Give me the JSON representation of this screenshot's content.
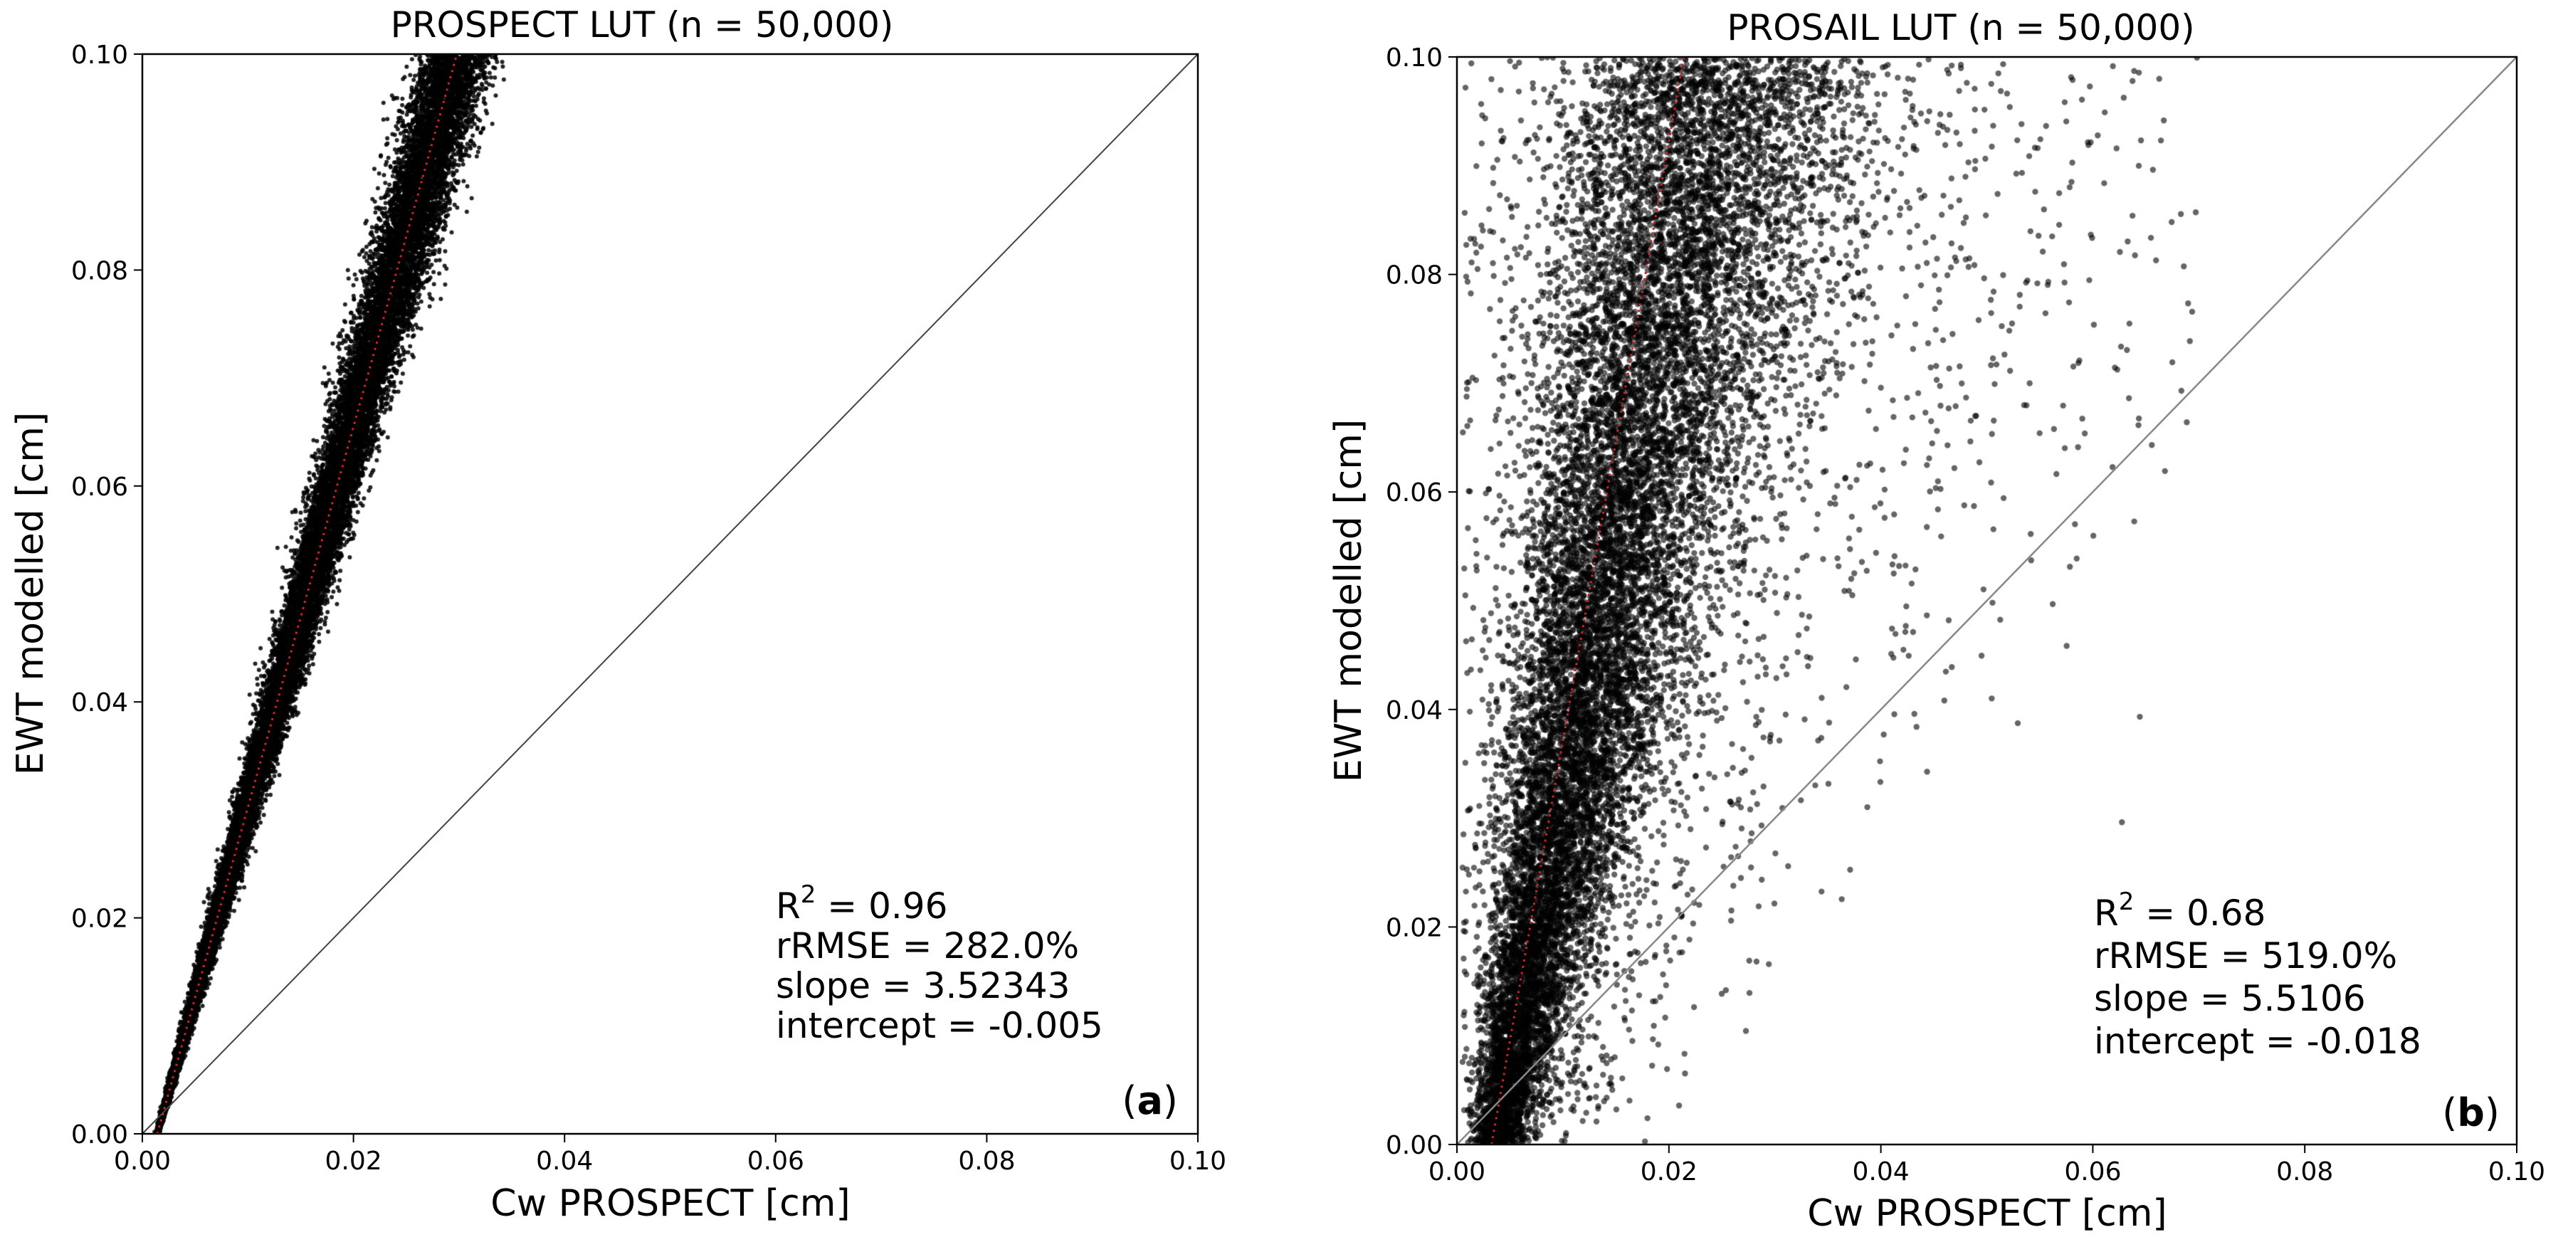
{
  "figure": {
    "description_free": true
  },
  "chart_data": [
    {
      "type": "scatter",
      "panel_label": "a",
      "title": "PROSPECT LUT (n = 50,000)",
      "xlabel": "Cw PROSPECT [cm]",
      "ylabel": "EWT modelled [cm]",
      "xlim": [
        0,
        0.1
      ],
      "ylim": [
        0,
        0.1
      ],
      "xticks": [
        "0.00",
        "0.02",
        "0.04",
        "0.06",
        "0.08",
        "0.10"
      ],
      "yticks": [
        "0.00",
        "0.02",
        "0.04",
        "0.06",
        "0.08",
        "0.10"
      ],
      "n_points": 50000,
      "point_color": "#000000",
      "fit_line": {
        "slope": 3.52343,
        "intercept": -0.005,
        "color": "#cc2222",
        "style": "dotted"
      },
      "one_to_one_line": {
        "color": "#444444"
      },
      "spread": {
        "relative_sd": 0.06,
        "cw_max": 0.036
      },
      "stats": {
        "r2_prefix": "R",
        "r2_sup": "2",
        "r2_value": " = 0.96",
        "rrmse": "rRMSE = 282.0%",
        "slope": "slope = 3.52343",
        "intercept": "intercept = -0.005"
      },
      "panel_tag": {
        "open": "(",
        "letter": "a",
        "close": ")"
      }
    },
    {
      "type": "scatter",
      "panel_label": "b",
      "title": "PROSAIL LUT (n = 50,000)",
      "xlabel": "Cw PROSPECT [cm]",
      "ylabel": "EWT modelled [cm]",
      "xlim": [
        0,
        0.1
      ],
      "ylim": [
        0,
        0.1
      ],
      "xticks": [
        "0.00",
        "0.02",
        "0.04",
        "0.06",
        "0.08",
        "0.10"
      ],
      "yticks": [
        "0.00",
        "0.02",
        "0.04",
        "0.06",
        "0.08",
        "0.10"
      ],
      "n_points": 50000,
      "point_color": "#000000",
      "fit_line": {
        "slope": 5.5106,
        "intercept": -0.018,
        "color": "#cc2222",
        "style": "dotted"
      },
      "one_to_one_line": {
        "color": "#888888"
      },
      "spread": {
        "relative_sd": 0.45,
        "cw_max": 0.07
      },
      "stats": {
        "r2_prefix": "R",
        "r2_sup": "2",
        "r2_value": " = 0.68",
        "rrmse": "rRMSE = 519.0%",
        "slope": "slope = 5.5106",
        "intercept": "intercept = -0.018"
      },
      "panel_tag": {
        "open": "(",
        "letter": "b",
        "close": ")"
      }
    }
  ]
}
